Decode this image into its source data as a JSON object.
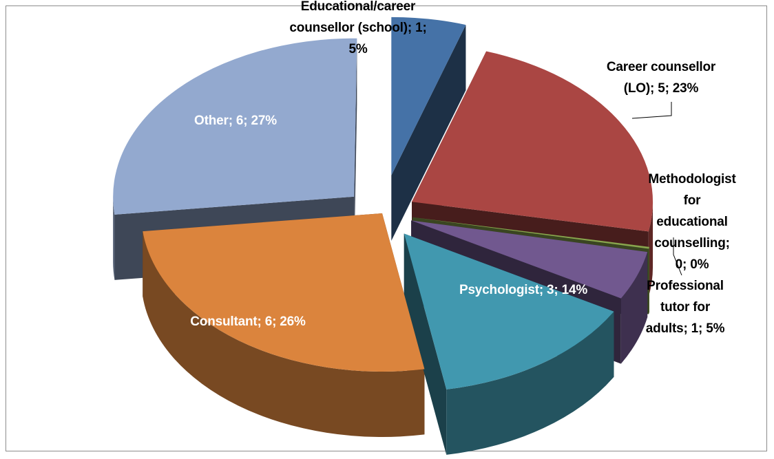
{
  "chart_data": {
    "type": "pie",
    "style": "3d-exploded",
    "slices": [
      {
        "category": "Educational/career counsellor (school)",
        "value": 1,
        "percent": 5,
        "label": "Educational/career\ncounsellor (school); 1;\n5%",
        "color": "#4572a7",
        "label_color": "dark"
      },
      {
        "category": "Career counsellor (LO)",
        "value": 5,
        "percent": 23,
        "label": "Career counsellor\n(LO); 5; 23%",
        "color": "#aa4643",
        "label_color": "dark"
      },
      {
        "category": "Methodologist for educational counselling",
        "value": 0,
        "percent": 0,
        "label": "Methodologist for\neducational\ncounselling; 0; 0%",
        "color": "#89a54e",
        "label_color": "dark"
      },
      {
        "category": "Professional tutor for adults",
        "value": 1,
        "percent": 5,
        "label": "Professional tutor for\nadults; 1; 5%",
        "color": "#71588f",
        "label_color": "dark"
      },
      {
        "category": "Psychologist",
        "value": 3,
        "percent": 14,
        "label": "Psychologist; 3; 14%",
        "color": "#4198af",
        "label_color": "light"
      },
      {
        "category": "Consultant",
        "value": 6,
        "percent": 26,
        "label": "Consultant; 6; 26%",
        "color": "#db843d",
        "label_color": "light"
      },
      {
        "category": "Other",
        "value": 6,
        "percent": 27,
        "label": "Other; 6; 27%",
        "color": "#93a9cf",
        "label_color": "light"
      }
    ],
    "legend": "none"
  }
}
